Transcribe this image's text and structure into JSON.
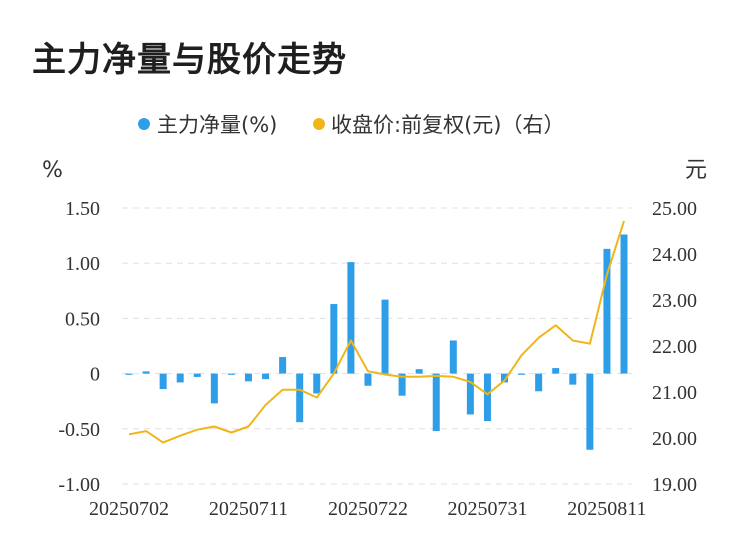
{
  "title": "主力净量与股价走势",
  "legend": {
    "series1": "主力净量(%)",
    "series2": "收盘价:前复权(元)（右）"
  },
  "colors": {
    "bar": "#2f9ee8",
    "line": "#f0b619",
    "grid": "#e0e0e0"
  },
  "chart_data": {
    "type": "bar",
    "title": "主力净量与股价走势",
    "y_left_unit": "%",
    "y_right_unit": "元",
    "y_left_ticks": [
      "1.50",
      "1.00",
      "0.50",
      "0",
      "-0.50",
      "-1.00"
    ],
    "y_right_ticks": [
      "25.00",
      "24.00",
      "23.00",
      "22.00",
      "21.00",
      "20.00",
      "19.00"
    ],
    "ylim_left": [
      -1.0,
      1.5
    ],
    "ylim_right": [
      19.0,
      25.0
    ],
    "x_tick_labels": [
      "20250702",
      "20250711",
      "20250722",
      "20250731",
      "20250811"
    ],
    "x": [
      "20250702",
      "20250703",
      "20250704",
      "20250707",
      "20250708",
      "20250709",
      "20250710",
      "20250711",
      "20250714",
      "20250715",
      "20250716",
      "20250717",
      "20250718",
      "20250721",
      "20250722",
      "20250723",
      "20250724",
      "20250725",
      "20250728",
      "20250729",
      "20250730",
      "20250731",
      "20250801",
      "20250804",
      "20250805",
      "20250806",
      "20250807",
      "20250808",
      "20250811",
      "20250812"
    ],
    "series": [
      {
        "name": "主力净量(%)",
        "type": "bar",
        "axis": "left",
        "values": [
          -0.01,
          0.02,
          -0.14,
          -0.08,
          -0.03,
          -0.27,
          -0.01,
          -0.07,
          -0.05,
          0.15,
          -0.44,
          -0.18,
          0.63,
          1.01,
          -0.11,
          0.67,
          -0.2,
          0.04,
          -0.52,
          0.3,
          -0.37,
          -0.43,
          -0.08,
          0.0,
          -0.16,
          0.05,
          -0.1,
          -0.69,
          1.13,
          1.26
        ]
      },
      {
        "name": "收盘价:前复权(元)（右）",
        "type": "line",
        "axis": "right",
        "values": [
          20.08,
          20.15,
          19.9,
          20.05,
          20.18,
          20.25,
          20.12,
          20.25,
          20.72,
          21.05,
          21.05,
          20.88,
          21.4,
          22.12,
          21.45,
          21.38,
          21.33,
          21.33,
          21.35,
          21.33,
          21.22,
          20.95,
          21.25,
          21.8,
          22.18,
          22.45,
          22.12,
          22.05,
          23.55,
          24.72
        ]
      }
    ]
  }
}
